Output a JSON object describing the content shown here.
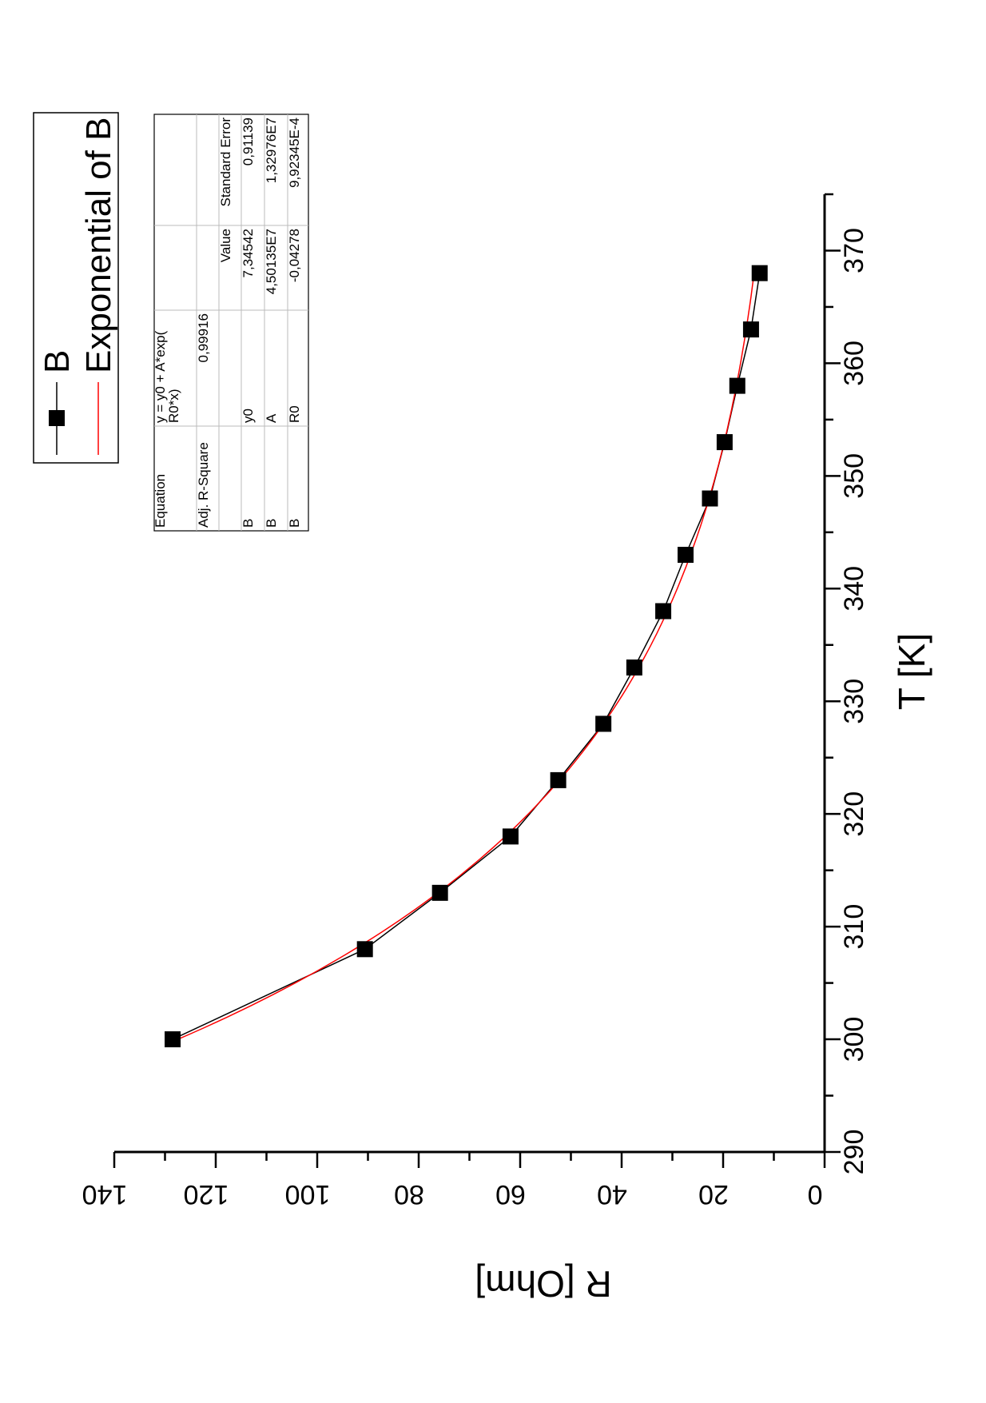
{
  "chart_data": {
    "type": "scatter",
    "xlabel": "T [K]",
    "ylabel": "R [Ohm]",
    "xlim": [
      290,
      375
    ],
    "ylim": [
      0,
      140
    ],
    "x_ticks": [
      "290",
      "300",
      "310",
      "320",
      "330",
      "340",
      "350",
      "360",
      "370"
    ],
    "y_ticks": [
      "0",
      "20",
      "40",
      "60",
      "80",
      "100",
      "120",
      "140"
    ],
    "grid": false,
    "legend_position": "top-right",
    "series": [
      {
        "name": "B",
        "style": "line-and-square-markers",
        "color": "#000000",
        "points": [
          {
            "x": 300,
            "y": 128.5
          },
          {
            "x": 308,
            "y": 90.6
          },
          {
            "x": 313,
            "y": 75.8
          },
          {
            "x": 318,
            "y": 61.9
          },
          {
            "x": 323,
            "y": 52.5
          },
          {
            "x": 328,
            "y": 43.6
          },
          {
            "x": 333,
            "y": 37.5
          },
          {
            "x": 338,
            "y": 31.8
          },
          {
            "x": 343,
            "y": 27.4
          },
          {
            "x": 348,
            "y": 22.6
          },
          {
            "x": 353,
            "y": 19.7
          },
          {
            "x": 358,
            "y": 17.2
          },
          {
            "x": 363,
            "y": 14.5
          },
          {
            "x": 368,
            "y": 12.8
          }
        ]
      },
      {
        "name": "Exponential of B",
        "style": "line",
        "color": "#ff0000",
        "fit": {
          "y0": 7.34542,
          "A": 45013500,
          "R0": -0.04278
        }
      }
    ],
    "fit_table": {
      "rows": [
        [
          "Equation",
          "y = y0 + A*exp(\nR0*x)",
          "",
          ""
        ],
        [
          "Adj. R-Square",
          "0,99916",
          "",
          ""
        ],
        [
          "",
          "",
          "Value",
          "Standard Error"
        ],
        [
          "B",
          "y0",
          "7,34542",
          "0,91139"
        ],
        [
          "B",
          "A",
          "4,50135E7",
          "1,32976E7"
        ],
        [
          "B",
          "R0",
          "-0,04278",
          "9,92345E-4"
        ]
      ]
    }
  }
}
